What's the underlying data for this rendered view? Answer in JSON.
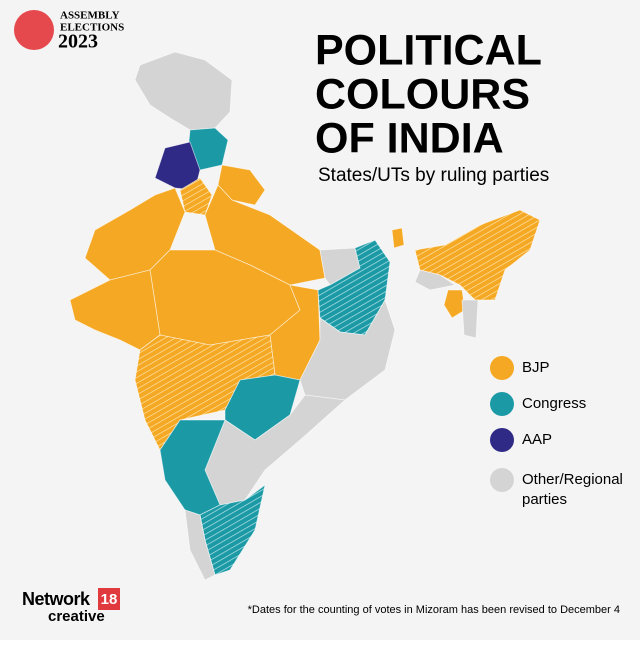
{
  "header": {
    "badge": {
      "line1": "ASSEMBLY",
      "line2": "ELECTIONS",
      "year": "2023"
    },
    "title": [
      "POLITICAL",
      "COLOURS",
      "OF INDIA"
    ],
    "subtitle": "States/UTs by ruling parties"
  },
  "legend": [
    {
      "label": "BJP",
      "color": "#f5a823"
    },
    {
      "label": "Congress",
      "color": "#1b9aa6"
    },
    {
      "label": "AAP",
      "color": "#2f2a86"
    },
    {
      "label": "Other/Regional parties",
      "color": "#d4d4d4"
    }
  ],
  "footer": {
    "brand": "Network",
    "brand_number": "18",
    "brand_sub": "creative",
    "note": "*Dates for the counting of votes in Mizoram has been revised to December 4"
  }
}
